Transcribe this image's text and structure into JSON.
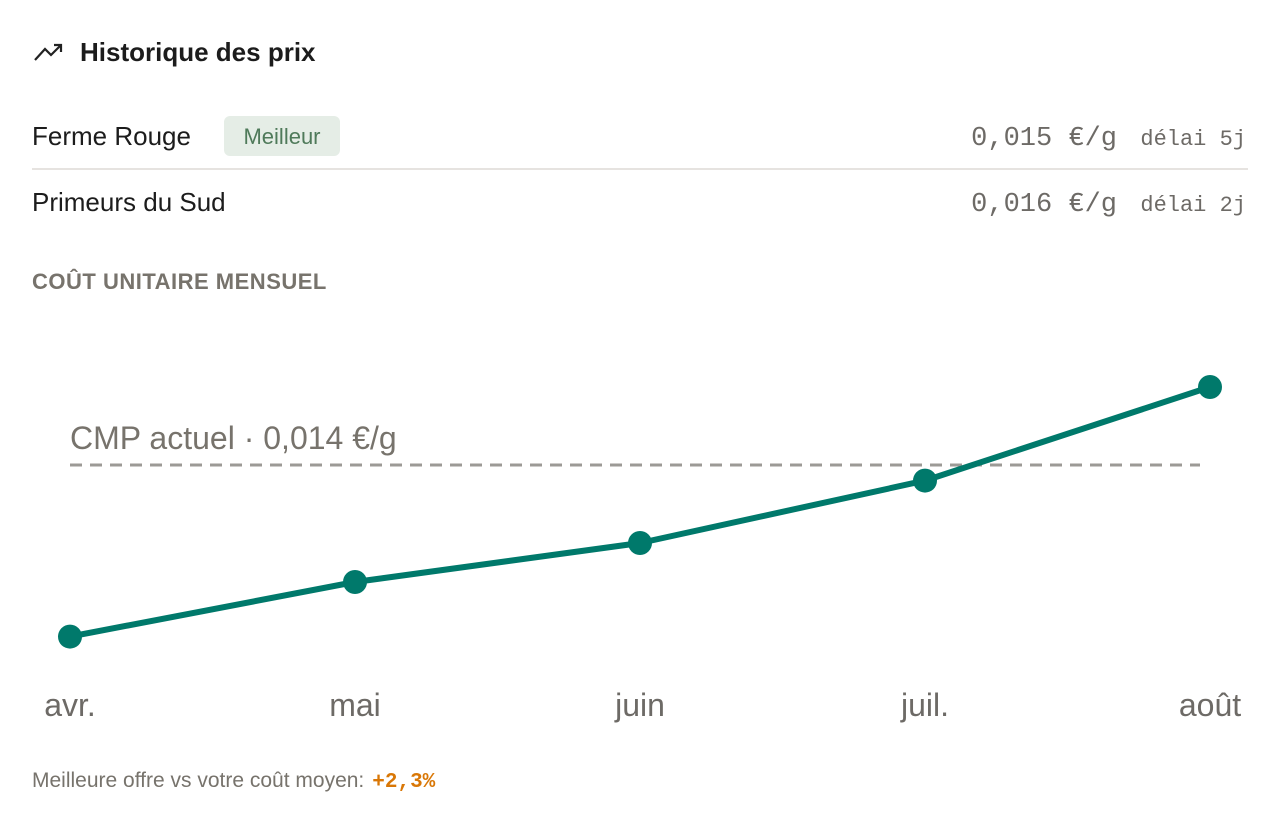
{
  "header": {
    "title": "Historique des prix"
  },
  "suppliers": [
    {
      "name": "Ferme Rouge",
      "badge": "Meilleur",
      "price": "0,015 €/g",
      "delay": "délai 5j"
    },
    {
      "name": "Primeurs du Sud",
      "price": "0,016 €/g",
      "delay": "délai 2j"
    }
  ],
  "section_label": "COÛT UNITAIRE MENSUEL",
  "chart_data": {
    "type": "line",
    "categories": [
      "avr.",
      "mai",
      "juin",
      "juil.",
      "août"
    ],
    "values": [
      0.0129,
      0.01325,
      0.0135,
      0.0139,
      0.0145
    ],
    "color": "#00796b",
    "ylim": [
      0.0125,
      0.015
    ],
    "reference_line": {
      "value": 0.014,
      "label": "CMP actuel · 0,014 €/g"
    }
  },
  "footer": {
    "text": "Meilleure offre vs votre coût moyen:",
    "delta": "+2,3%"
  }
}
